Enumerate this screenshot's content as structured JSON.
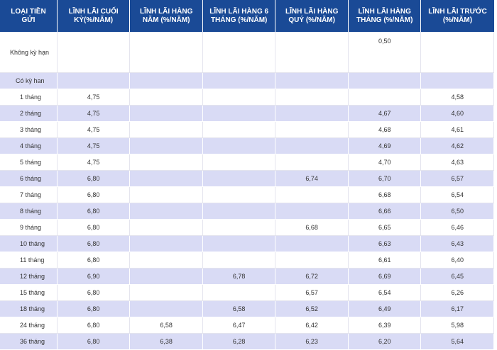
{
  "headers": [
    "Loại tiền gửi",
    "Lĩnh lãi cuối kỳ(%/năm)",
    "Lĩnh lãi hàng năm (%/năm)",
    "Lĩnh lãi hàng 6 tháng (%/năm)",
    "Lĩnh lãi hàng quý (%/năm)",
    "Lĩnh lãi hàng tháng (%/năm)",
    "Lĩnh lãi trước (%/năm)"
  ],
  "rows": [
    [
      "Không kỳ hạn",
      "",
      "",
      "",
      "",
      "0,50",
      ""
    ],
    [
      "Có kỳ han",
      "",
      "",
      "",
      "",
      "",
      ""
    ],
    [
      "1 tháng",
      "4,75",
      "",
      "",
      "",
      "",
      "4,58"
    ],
    [
      "2 tháng",
      "4,75",
      "",
      "",
      "",
      "4,67",
      "4,60"
    ],
    [
      "3 tháng",
      "4,75",
      "",
      "",
      "",
      "4,68",
      "4,61"
    ],
    [
      "4 tháng",
      "4,75",
      "",
      "",
      "",
      "4,69",
      "4,62"
    ],
    [
      "5 tháng",
      "4,75",
      "",
      "",
      "",
      "4,70",
      "4,63"
    ],
    [
      "6 tháng",
      "6,80",
      "",
      "",
      "6,74",
      "6,70",
      "6,57"
    ],
    [
      "7 tháng",
      "6,80",
      "",
      "",
      "",
      "6,68",
      "6,54"
    ],
    [
      "8 tháng",
      "6,80",
      "",
      "",
      "",
      "6,66",
      "6,50"
    ],
    [
      "9 tháng",
      "6,80",
      "",
      "",
      "6,68",
      "6,65",
      "6,46"
    ],
    [
      "10 tháng",
      "6,80",
      "",
      "",
      "",
      "6,63",
      "6,43"
    ],
    [
      "11 tháng",
      "6,80",
      "",
      "",
      "",
      "6,61",
      "6,40"
    ],
    [
      "12 tháng",
      "6,90",
      "",
      "6,78",
      "6,72",
      "6,69",
      "6,45"
    ],
    [
      "15 tháng",
      "6,80",
      "",
      "",
      "6,57",
      "6,54",
      "6,26"
    ],
    [
      "18 tháng",
      "6,80",
      "",
      "6,58",
      "6,52",
      "6,49",
      "6,17"
    ],
    [
      "24 tháng",
      "6,80",
      "6,58",
      "6,47",
      "6,42",
      "6,39",
      "5,98"
    ],
    [
      "36 tháng",
      "6,80",
      "6,38",
      "6,28",
      "6,23",
      "6,20",
      "5,64"
    ]
  ]
}
